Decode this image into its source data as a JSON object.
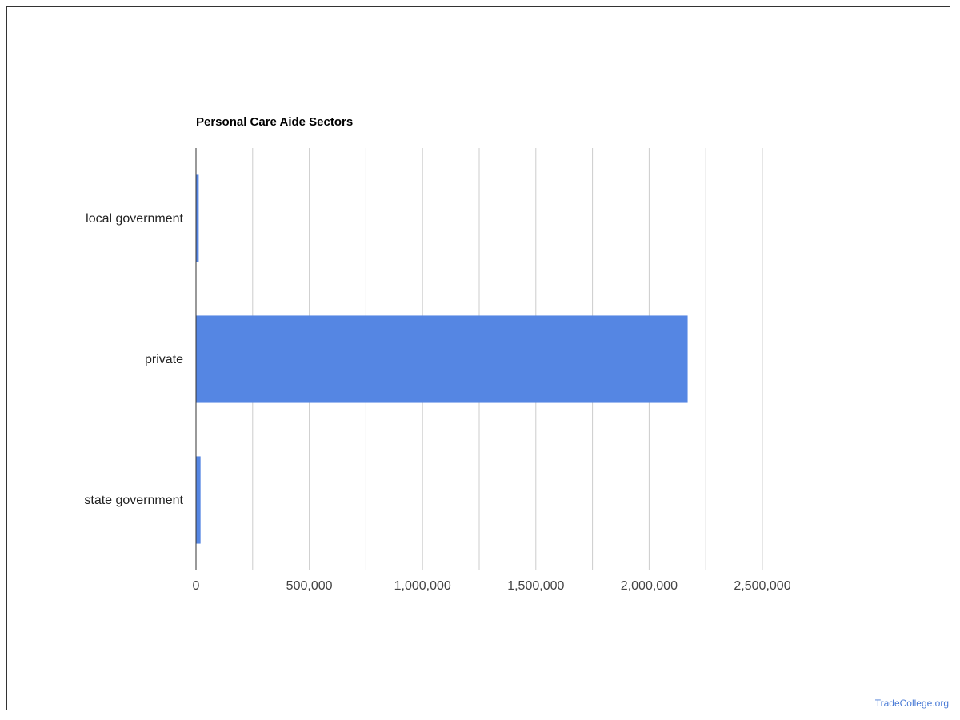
{
  "watermark": "TradeCollege.org",
  "chart_data": {
    "type": "bar",
    "orientation": "horizontal",
    "title": "Personal Care Aide Sectors",
    "xlabel": "",
    "ylabel": "",
    "categories": [
      "local government",
      "private",
      "state government"
    ],
    "values": [
      12000,
      2170000,
      20000
    ],
    "xlim": [
      0,
      2500000
    ],
    "ticks": [
      0,
      500000,
      1000000,
      1500000,
      2000000,
      2500000
    ],
    "tick_labels": [
      "0",
      "500,000",
      "1,000,000",
      "1,500,000",
      "2,000,000",
      "2,500,000"
    ],
    "grid": true,
    "bar_color": "#5586e3",
    "grid_color": "#cccccc",
    "axis_color": "#333333"
  }
}
